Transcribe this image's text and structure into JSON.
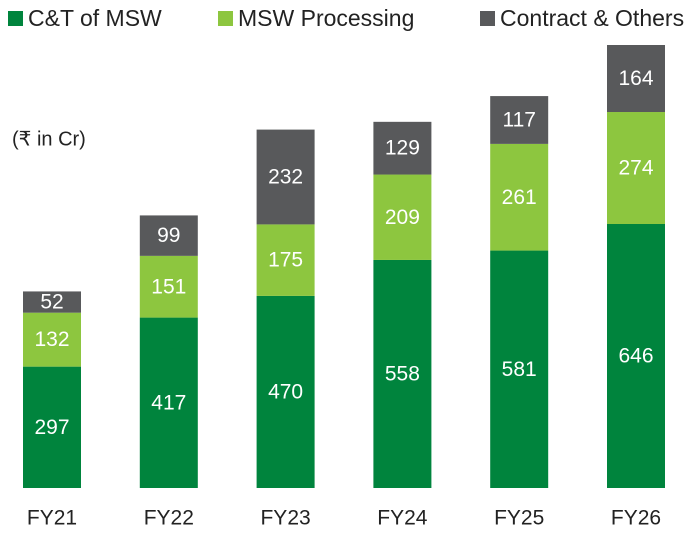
{
  "chart_data": {
    "type": "stacked_bar",
    "subtitle": "(₹ in Cr)",
    "categories": [
      "FY21",
      "FY22",
      "FY23",
      "FY24",
      "FY25",
      "FY26"
    ],
    "series": [
      {
        "name": "C&T of MSW",
        "color": "#00843d",
        "values": [
          297,
          417,
          470,
          558,
          581,
          646
        ]
      },
      {
        "name": "MSW Processing",
        "color": "#8dc63f",
        "values": [
          132,
          151,
          175,
          209,
          261,
          274
        ]
      },
      {
        "name": "Contract & Others",
        "color": "#58595b",
        "values": [
          52,
          99,
          232,
          129,
          117,
          164
        ]
      }
    ],
    "legend": "top"
  }
}
